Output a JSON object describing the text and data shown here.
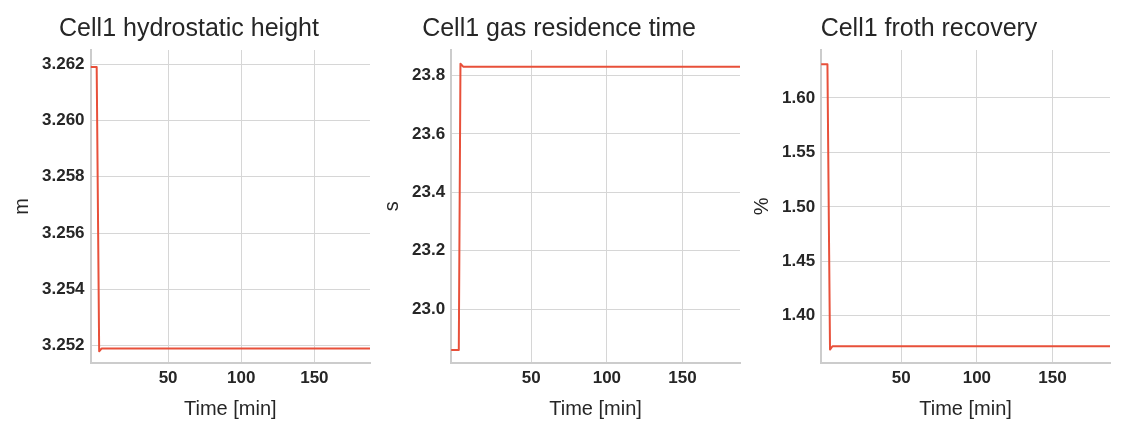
{
  "chart_data": [
    {
      "type": "line",
      "title": "Cell1 hydrostatic height",
      "xlabel": "Time [min]",
      "ylabel": "m",
      "x": [
        -3,
        1.2,
        2.9,
        4.5,
        188
      ],
      "values": [
        3.2619,
        3.2619,
        3.2518,
        3.2519,
        3.2519
      ],
      "color": "#e8503a",
      "xlim": [
        -3,
        188
      ],
      "xticks": [
        50,
        100,
        150
      ],
      "ylim": [
        3.2514,
        3.2625
      ],
      "yticks": [
        {
          "value": 3.252,
          "label": "3.252"
        },
        {
          "value": 3.254,
          "label": "3.254"
        },
        {
          "value": 3.256,
          "label": "3.256"
        },
        {
          "value": 3.258,
          "label": "3.258"
        },
        {
          "value": 3.26,
          "label": "3.260"
        },
        {
          "value": 3.262,
          "label": "3.262"
        }
      ],
      "grid": true
    },
    {
      "type": "line",
      "title": "Cell1 gas residence time",
      "xlabel": "Time [min]",
      "ylabel": "s",
      "x": [
        -3,
        2.1,
        3.2,
        5,
        188
      ],
      "values": [
        22.86,
        22.86,
        23.84,
        23.83,
        23.83
      ],
      "color": "#e8503a",
      "xlim": [
        -3,
        188
      ],
      "xticks": [
        50,
        100,
        150
      ],
      "ylim": [
        22.817,
        23.887
      ],
      "yticks": [
        {
          "value": 23,
          "label": "23.0"
        },
        {
          "value": 23.2,
          "label": "23.2"
        },
        {
          "value": 23.4,
          "label": "23.4"
        },
        {
          "value": 23.6,
          "label": "23.6"
        },
        {
          "value": 23.8,
          "label": "23.8"
        }
      ],
      "grid": true
    },
    {
      "type": "line",
      "title": "Cell1 froth recovery",
      "xlabel": "Time [min]",
      "ylabel": "%",
      "x": [
        -3,
        1.2,
        2.9,
        4.5,
        188
      ],
      "values": [
        1.631,
        1.631,
        1.369,
        1.372,
        1.372
      ],
      "color": "#e8503a",
      "xlim": [
        -3,
        188
      ],
      "xticks": [
        50,
        100,
        150
      ],
      "ylim": [
        1.357,
        1.644
      ],
      "yticks": [
        {
          "value": 1.4,
          "label": "1.40"
        },
        {
          "value": 1.45,
          "label": "1.45"
        },
        {
          "value": 1.5,
          "label": "1.50"
        },
        {
          "value": 1.55,
          "label": "1.55"
        },
        {
          "value": 1.6,
          "label": "1.60"
        }
      ],
      "grid": true
    }
  ]
}
